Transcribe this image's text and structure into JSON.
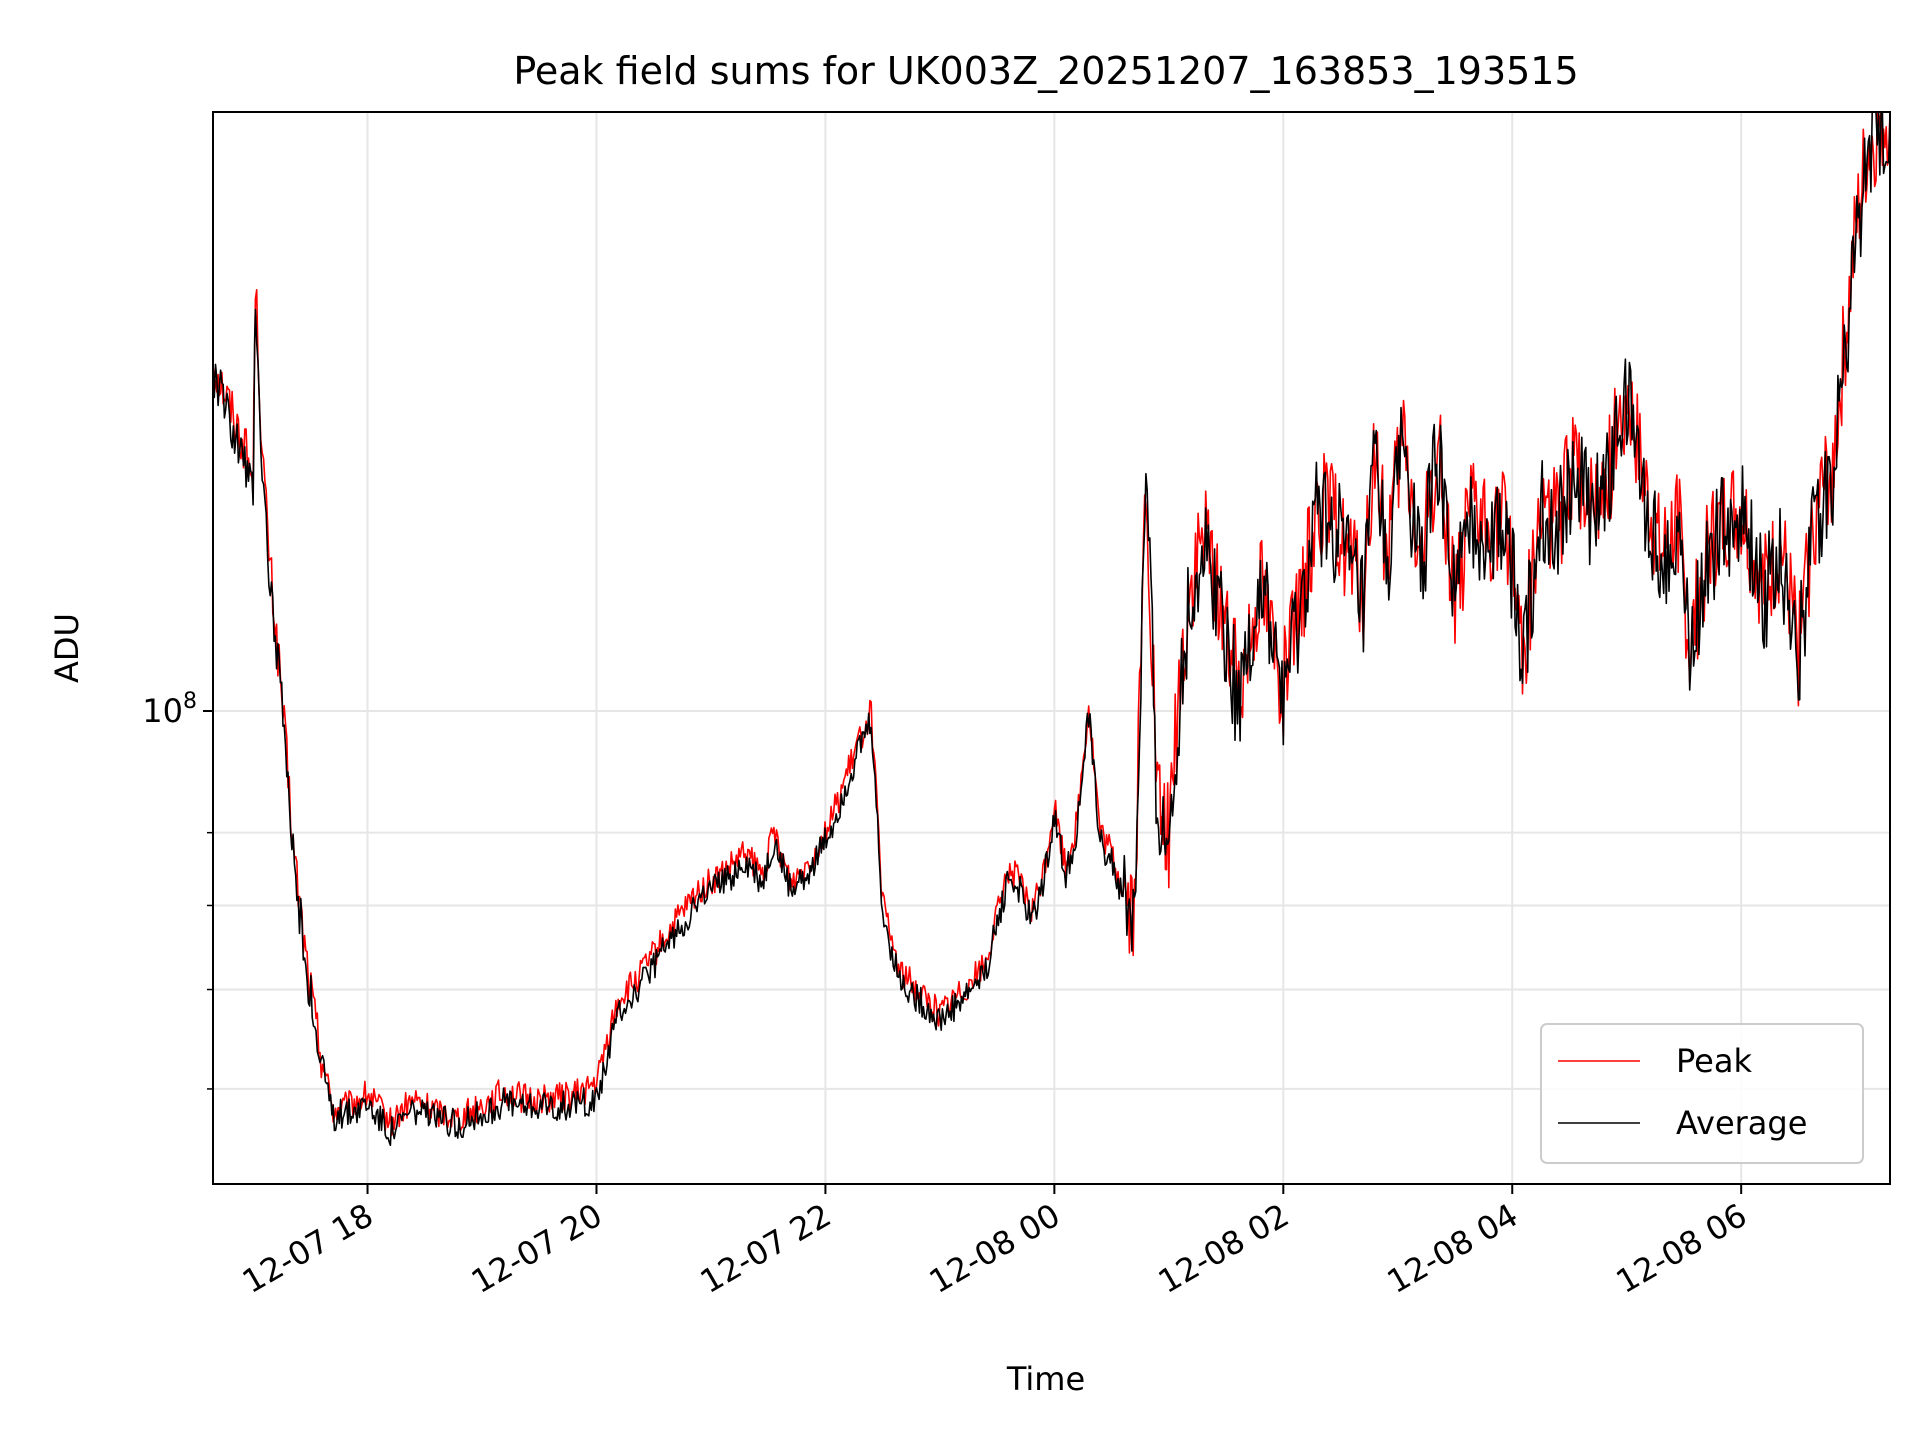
{
  "chart_data": {
    "type": "line",
    "title": "Peak field sums for UK003Z_20251207_163853_193515",
    "xlabel": "Time",
    "ylabel": "ADU",
    "yscale": "log",
    "ylim": [
      42000000,
      300000000
    ],
    "xlim_hours": [
      16.65,
      31.3
    ],
    "x_ticks": [
      {
        "hour": 18,
        "label": "12-07 18"
      },
      {
        "hour": 20,
        "label": "12-07 20"
      },
      {
        "hour": 22,
        "label": "12-07 22"
      },
      {
        "hour": 24,
        "label": "12-08 00"
      },
      {
        "hour": 26,
        "label": "12-08 02"
      },
      {
        "hour": 28,
        "label": "12-08 04"
      },
      {
        "hour": 30,
        "label": "12-08 06"
      }
    ],
    "y_major_ticks": [
      {
        "value": 100000000,
        "label_base": "10",
        "label_exp": "8"
      }
    ],
    "y_minor_ticks": [
      50000000,
      60000000,
      70000000,
      80000000
    ],
    "grid": true,
    "legend_position": "lower-right",
    "series": [
      {
        "name": "Peak",
        "color": "#ff0000",
        "x_hours": [
          16.65,
          16.75,
          16.85,
          16.95,
          17.0,
          17.02,
          17.08,
          17.15,
          17.25,
          17.35,
          17.45,
          17.55,
          17.7,
          17.85,
          18.0,
          18.2,
          18.4,
          18.6,
          18.8,
          19.0,
          19.2,
          19.4,
          19.6,
          19.8,
          20.0,
          20.15,
          20.2,
          20.35,
          20.5,
          20.7,
          20.9,
          21.1,
          21.3,
          21.45,
          21.55,
          21.7,
          21.9,
          22.05,
          22.15,
          22.3,
          22.4,
          22.5,
          22.65,
          22.8,
          23.0,
          23.2,
          23.4,
          23.6,
          23.7,
          23.8,
          23.9,
          24.0,
          24.1,
          24.2,
          24.3,
          24.4,
          24.5,
          24.6,
          24.7,
          24.8,
          24.9,
          24.95,
          25.0,
          25.1,
          25.2,
          25.3,
          25.4,
          25.5,
          25.6,
          25.7,
          25.8,
          25.9,
          26.0,
          26.15,
          26.3,
          26.5,
          26.7,
          26.8,
          26.9,
          27.05,
          27.2,
          27.35,
          27.5,
          27.65,
          27.8,
          27.95,
          28.1,
          28.25,
          28.4,
          28.55,
          28.7,
          28.85,
          29.0,
          29.15,
          29.3,
          29.45,
          29.55,
          29.7,
          29.85,
          30.0,
          30.2,
          30.35,
          30.5,
          30.65,
          30.8,
          31.0,
          31.1,
          31.2,
          31.3
        ],
        "y_values": [
          190000000,
          180000000,
          170000000,
          160000000,
          151000000,
          222000000,
          160000000,
          130000000,
          103000000,
          78000000,
          65000000,
          56000000,
          48000000,
          48500000,
          49500000,
          47000000,
          49000000,
          48000000,
          47500000,
          48500000,
          49800000,
          49000000,
          49200000,
          49400000,
          50500000,
          57000000,
          59000000,
          61000000,
          64000000,
          68000000,
          72000000,
          74000000,
          77000000,
          74000000,
          80000000,
          73000000,
          77000000,
          82000000,
          87000000,
          95000000,
          100000000,
          70000000,
          62000000,
          60000000,
          57500000,
          60000000,
          63000000,
          75000000,
          73000000,
          69000000,
          74000000,
          84000000,
          75000000,
          82000000,
          101000000,
          80000000,
          77000000,
          72000000,
          69000000,
          155000000,
          85000000,
          80000000,
          80000000,
          107000000,
          126000000,
          137000000,
          129000000,
          118000000,
          104000000,
          115000000,
          128000000,
          115000000,
          105000000,
          120000000,
          148000000,
          139000000,
          123000000,
          162000000,
          133000000,
          165000000,
          130000000,
          163000000,
          125000000,
          143000000,
          139000000,
          142000000,
          112000000,
          145000000,
          142000000,
          158000000,
          145000000,
          156000000,
          181000000,
          152000000,
          132000000,
          143000000,
          111000000,
          134000000,
          142000000,
          145000000,
          125000000,
          135000000,
          112000000,
          145000000,
          157000000,
          240000000,
          280000000,
          290000000,
          300000000
        ]
      },
      {
        "name": "Average",
        "color": "#000000",
        "x_hours": [
          16.65,
          16.75,
          16.85,
          16.95,
          17.0,
          17.02,
          17.08,
          17.15,
          17.25,
          17.35,
          17.45,
          17.55,
          17.7,
          17.85,
          18.0,
          18.2,
          18.4,
          18.6,
          18.8,
          19.0,
          19.2,
          19.4,
          19.6,
          19.8,
          20.0,
          20.15,
          20.2,
          20.35,
          20.5,
          20.7,
          20.9,
          21.1,
          21.3,
          21.45,
          21.55,
          21.7,
          21.9,
          22.05,
          22.15,
          22.3,
          22.4,
          22.5,
          22.65,
          22.8,
          23.0,
          23.2,
          23.4,
          23.6,
          23.7,
          23.8,
          23.9,
          24.0,
          24.1,
          24.2,
          24.3,
          24.4,
          24.5,
          24.6,
          24.7,
          24.8,
          24.9,
          24.95,
          25.0,
          25.1,
          25.2,
          25.3,
          25.4,
          25.5,
          25.6,
          25.7,
          25.8,
          25.9,
          26.0,
          26.15,
          26.3,
          26.5,
          26.7,
          26.8,
          26.9,
          27.05,
          27.2,
          27.35,
          27.5,
          27.65,
          27.8,
          27.95,
          28.1,
          28.25,
          28.4,
          28.55,
          28.7,
          28.85,
          29.0,
          29.15,
          29.3,
          29.45,
          29.55,
          29.7,
          29.85,
          30.0,
          30.2,
          30.35,
          30.5,
          30.65,
          30.8,
          31.0,
          31.1,
          31.2,
          31.3
        ],
        "y_values": [
          186000000,
          176000000,
          166000000,
          156000000,
          148000000,
          218000000,
          156000000,
          127000000,
          101000000,
          76500000,
          64000000,
          55000000,
          47500000,
          48000000,
          48800000,
          46300000,
          48200000,
          47300000,
          46800000,
          47700000,
          48900000,
          48200000,
          48400000,
          48600000,
          49000000,
          55500000,
          57800000,
          59800000,
          62800000,
          66800000,
          70800000,
          72800000,
          75800000,
          72800000,
          78600000,
          71800000,
          75800000,
          80600000,
          85600000,
          93600000,
          98400000,
          68800000,
          61000000,
          59000000,
          56600000,
          59000000,
          62000000,
          73800000,
          71800000,
          67900000,
          72800000,
          82600000,
          73800000,
          80600000,
          99400000,
          78600000,
          75800000,
          70800000,
          67900000,
          152000000,
          83600000,
          78600000,
          78600000,
          105000000,
          124000000,
          135000000,
          127000000,
          116000000,
          102000000,
          113000000,
          126000000,
          113000000,
          103000000,
          118000000,
          146000000,
          137000000,
          121000000,
          160000000,
          131000000,
          163000000,
          128000000,
          161000000,
          123000000,
          141000000,
          137000000,
          140000000,
          110000000,
          143000000,
          140000000,
          156000000,
          143000000,
          154000000,
          179000000,
          150000000,
          130000000,
          141000000,
          109000000,
          132000000,
          140000000,
          143000000,
          123000000,
          133000000,
          110000000,
          143000000,
          155000000,
          236000000,
          276000000,
          286000000,
          298000000
        ]
      }
    ]
  }
}
